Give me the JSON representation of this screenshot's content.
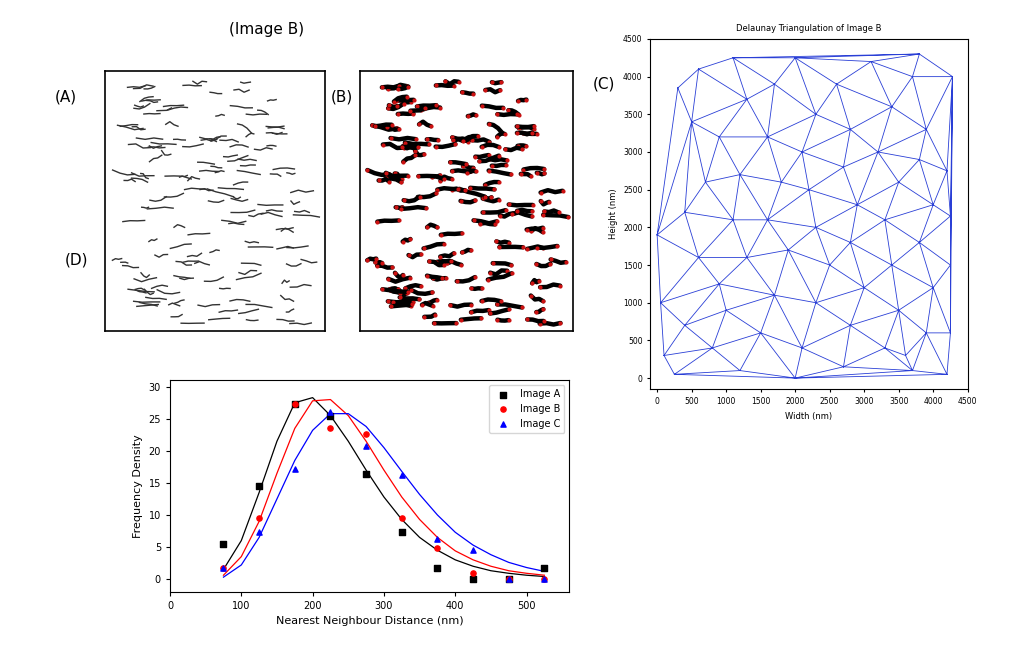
{
  "header": "(Image B)",
  "images": [
    {
      "panel_label": "(A)"
    },
    {
      "panel_label": "(B)"
    }
  ],
  "chart_data": [
    {
      "type": "triangulation",
      "panel_label": "(C)",
      "title": "Delaunay Triangulation of Image B",
      "x_label": "Width (nm)",
      "y_label": "Height (nm)",
      "color": "#2a3fd6",
      "x": [
        300,
        0,
        50,
        100,
        250,
        2000,
        2700,
        3700,
        4200,
        4250,
        4250,
        4250,
        4200,
        4280,
        3800,
        3100,
        2000,
        1100,
        600,
        500,
        700,
        400,
        600,
        900,
        400,
        800,
        1200,
        1000,
        1300,
        1100,
        1200,
        900,
        1300,
        1700,
        1600,
        1800,
        1600,
        1900,
        1700,
        1500,
        2100,
        2300,
        2500,
        2300,
        2200,
        2100,
        2300,
        2600,
        2800,
        2700,
        2900,
        2800,
        3000,
        2800,
        3300,
        3500,
        3400,
        3300,
        3500,
        3200,
        3400,
        3700,
        3900,
        3800,
        4000,
        3800,
        4000,
        3900,
        3600
      ],
      "y": [
        3850,
        1900,
        1000,
        300,
        50,
        0,
        150,
        100,
        50,
        600,
        1500,
        2150,
        2750,
        4000,
        4300,
        4200,
        4250,
        4250,
        4100,
        3400,
        2600,
        2200,
        1600,
        1250,
        700,
        400,
        100,
        900,
        1600,
        2100,
        2700,
        3200,
        3700,
        3900,
        3200,
        2600,
        2100,
        1700,
        1100,
        600,
        400,
        1000,
        1500,
        2000,
        2500,
        3000,
        3500,
        3900,
        3300,
        2800,
        2300,
        1800,
        1200,
        700,
        400,
        900,
        1500,
        2100,
        2600,
        3000,
        3600,
        4000,
        3300,
        2900,
        2300,
        1800,
        1200,
        600,
        300
      ],
      "xlim": [
        -100,
        4500
      ],
      "ylim": [
        -150,
        4500
      ],
      "xticks": [
        0,
        500,
        1000,
        1500,
        2000,
        2500,
        3000,
        3500,
        4000,
        4500
      ],
      "yticks": [
        0,
        500,
        1000,
        1500,
        2000,
        2500,
        3000,
        3500,
        4000,
        4500
      ]
    },
    {
      "type": "scatter",
      "panel_label": "(D)",
      "x_label": "Nearest Neighbour Distance (nm)",
      "y_label": "Frequency Density",
      "x": [
        75,
        125,
        175,
        225,
        275,
        325,
        375,
        425,
        475,
        525
      ],
      "fit_x": [
        75,
        100,
        125,
        150,
        175,
        200,
        225,
        250,
        275,
        300,
        325,
        350,
        375,
        400,
        425,
        450,
        475,
        500,
        525
      ],
      "series": [
        {
          "name": "Image A",
          "color": "#000000",
          "marker": "square",
          "line_style": "solid",
          "values": [
            5.5,
            14.5,
            27.3,
            25.5,
            16.4,
            7.3,
            1.8,
            0,
            0,
            1.8
          ],
          "fit_values": [
            1.5,
            6,
            13.5,
            21.5,
            27.5,
            28.3,
            25.5,
            21.5,
            17,
            12.8,
            9.3,
            6.5,
            4.5,
            3.0,
            2.0,
            1.3,
            0.9,
            0.6,
            0.4
          ]
        },
        {
          "name": "Image B",
          "color": "#ff0000",
          "marker": "circle",
          "line_style": "solid",
          "values": [
            1.8,
            9.5,
            27.3,
            23.6,
            22.7,
            9.5,
            4.8,
            1.0,
            0,
            0
          ],
          "fit_values": [
            0.6,
            3.5,
            9,
            16.5,
            23.5,
            27.8,
            28,
            25.5,
            21.5,
            17,
            12.8,
            9.3,
            6.5,
            4.4,
            3.0,
            2.0,
            1.3,
            0.9,
            0.6
          ]
        },
        {
          "name": "Image C",
          "color": "#0000ff",
          "marker": "triangle",
          "line_style": "solid",
          "values": [
            1.8,
            7.3,
            17.1,
            26,
            20.8,
            16.3,
            6.3,
            4.6,
            0,
            0
          ],
          "fit_values": [
            0.3,
            2.2,
            6.5,
            12.5,
            18.5,
            23.2,
            25.8,
            25.8,
            23.8,
            20.5,
            16.8,
            13.2,
            10,
            7.3,
            5.3,
            3.8,
            2.6,
            1.8,
            1.2
          ]
        }
      ],
      "xlim": [
        0,
        560
      ],
      "ylim": [
        -2,
        31
      ],
      "xticks": [
        0,
        100,
        200,
        300,
        400,
        500
      ],
      "yticks": [
        0,
        5,
        10,
        15,
        20,
        25,
        30
      ],
      "legend": "upper right"
    }
  ]
}
